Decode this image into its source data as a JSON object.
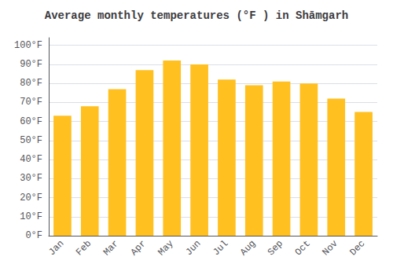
{
  "chart_data": {
    "type": "bar",
    "title": "Average monthly temperatures (°F ) in Shāmgarh",
    "categories": [
      "Jan",
      "Feb",
      "Mar",
      "Apr",
      "May",
      "Jun",
      "Jul",
      "Aug",
      "Sep",
      "Oct",
      "Nov",
      "Dec"
    ],
    "values": [
      63,
      68,
      77,
      87,
      92,
      90,
      82,
      79,
      81,
      80,
      72,
      65
    ],
    "color": "#FFC020",
    "ylim": [
      0,
      104
    ],
    "yticks": [
      {
        "value": 0,
        "label": "0°F"
      },
      {
        "value": 10,
        "label": "10°F"
      },
      {
        "value": 20,
        "label": "20°F"
      },
      {
        "value": 30,
        "label": "30°F"
      },
      {
        "value": 40,
        "label": "40°F"
      },
      {
        "value": 50,
        "label": "50°F"
      },
      {
        "value": 60,
        "label": "60°F"
      },
      {
        "value": 70,
        "label": "70°F"
      },
      {
        "value": 80,
        "label": "80°F"
      },
      {
        "value": 90,
        "label": "90°F"
      },
      {
        "value": 100,
        "label": "100°F"
      }
    ],
    "grid": true
  }
}
